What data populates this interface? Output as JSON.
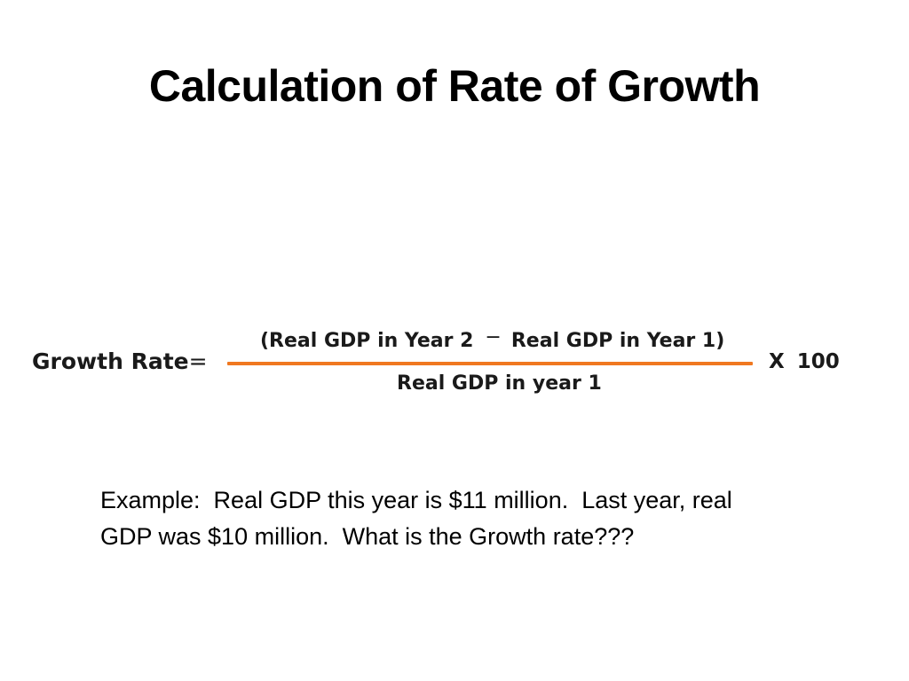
{
  "slide": {
    "title": "Calculation of Rate of Growth",
    "formula": {
      "lhs_label": "Growth Rate",
      "equals": "=",
      "numerator_left": "(Real GDP in Year 2",
      "operator": "−",
      "numerator_right": "Real GDP in Year 1)",
      "denominator": "Real GDP in year 1",
      "multiply_symbol": "X",
      "multiplier": "100"
    },
    "example": {
      "line1": "Example:  Real GDP this year is $11 million.  Last year, real",
      "line2": "GDP was $10 million.  What is the Growth rate???"
    }
  },
  "colors": {
    "fraction_bar": "#f07820",
    "background": "#ffffff",
    "text": "#000000"
  }
}
